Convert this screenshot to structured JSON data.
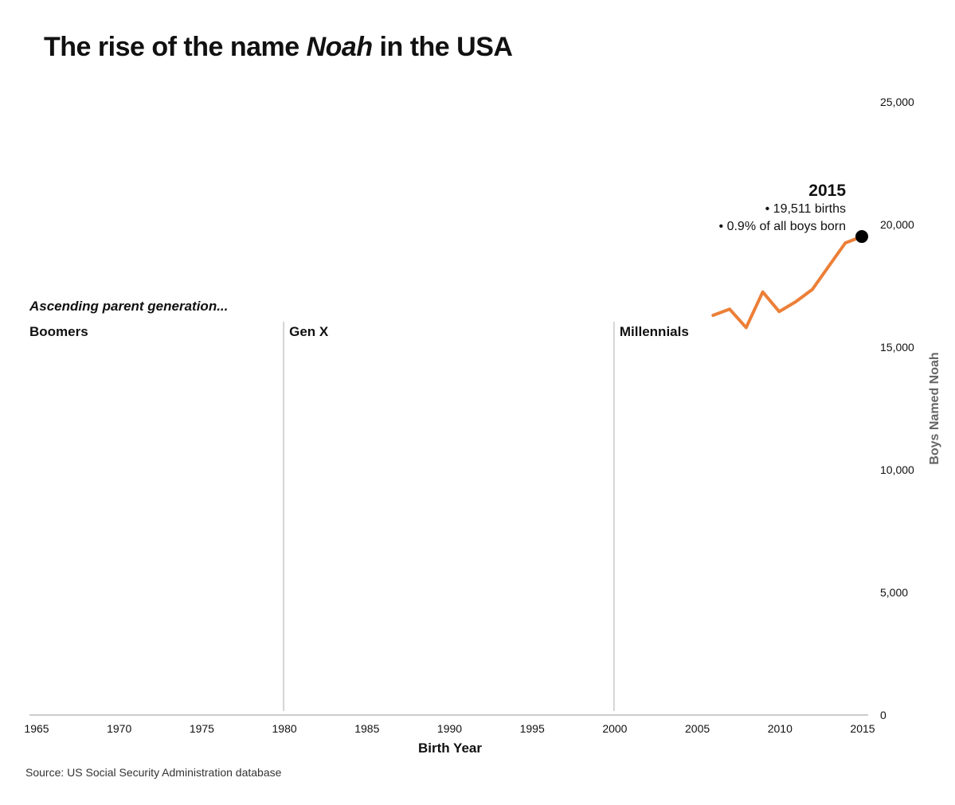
{
  "title": {
    "prefix": "The rise of the name ",
    "name": "Noah",
    "suffix": " in the USA"
  },
  "source": "Source: US Social Security Administration database",
  "chart_data": {
    "type": "line",
    "title": "The rise of the name Noah in the USA",
    "xlabel": "Birth Year",
    "ylabel": "Boys Named Noah",
    "xlim": [
      1965,
      2015
    ],
    "ylim": [
      0,
      25000
    ],
    "x_ticks": [
      1965,
      1970,
      1975,
      1980,
      1985,
      1990,
      1995,
      2000,
      2005,
      2010,
      2015
    ],
    "y_ticks": [
      0,
      5000,
      10000,
      15000,
      20000,
      25000
    ],
    "y_tick_labels": [
      "0",
      "5,000",
      "10,000",
      "15,000",
      "20,000",
      "25,000"
    ],
    "line_color": "#ec7f37",
    "series": [
      {
        "name": "Boys Named Noah",
        "x": [
          2006,
          2007,
          2008,
          2009,
          2010,
          2011,
          2012,
          2013,
          2014,
          2015
        ],
        "values": [
          16300,
          16550,
          15800,
          17250,
          16450,
          16850,
          17350,
          18300,
          19250,
          19511
        ]
      }
    ],
    "highlight": {
      "x": 2015,
      "y": 19511,
      "label": "2015",
      "lines": [
        "• 19,511 births",
        "• 0.9% of all boys born"
      ]
    },
    "generations": {
      "heading": "Ascending parent generation...",
      "items": [
        {
          "label": "Boomers",
          "start": 1965
        },
        {
          "label": "Gen X",
          "start": 1980
        },
        {
          "label": "Millennials",
          "start": 2000
        }
      ]
    }
  }
}
